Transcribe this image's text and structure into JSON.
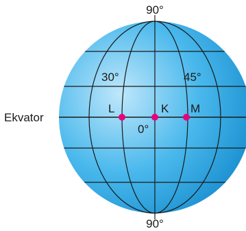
{
  "labels": {
    "north_pole": "90°",
    "south_pole": "90°",
    "equator": "Ekvator",
    "meridian_left": "30°",
    "meridian_right": "45°",
    "prime_meridian": "0°",
    "point_l": "L",
    "point_k": "K",
    "point_m": "M"
  },
  "colors": {
    "globe_light": "#bfe7fb",
    "globe_mid": "#49b8ec",
    "globe_dark": "#1a8fd0",
    "grid_lines": "#1a1a1a",
    "points": "#e6007e"
  }
}
